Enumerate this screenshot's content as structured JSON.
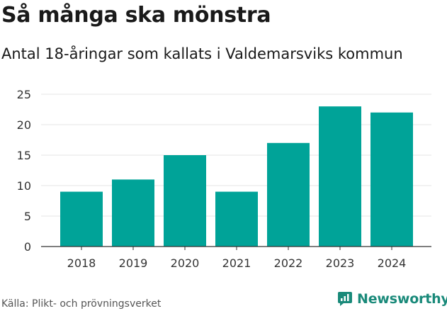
{
  "title": "Så många ska mönstra",
  "subtitle": "Antal 18-åringar som kallats i Valdemarsviks kommun",
  "source": "Källa: Plikt- och prövningsverket",
  "brand": "Newsworthy",
  "colors": {
    "bar": "#00a398",
    "grid": "#e6e6e6",
    "axis": "#333333",
    "brand": "#1a8a7a"
  },
  "chart_data": {
    "type": "bar",
    "title": "Så många ska mönstra",
    "subtitle": "Antal 18-åringar som kallats i Valdemarsviks kommun",
    "categories": [
      "2018",
      "2019",
      "2020",
      "2021",
      "2022",
      "2023",
      "2024"
    ],
    "values": [
      9,
      11,
      15,
      9,
      17,
      23,
      22
    ],
    "xlabel": "",
    "ylabel": "",
    "ylim": [
      0,
      25
    ],
    "yticks": [
      0,
      5,
      10,
      15,
      20,
      25
    ],
    "grid": true
  }
}
